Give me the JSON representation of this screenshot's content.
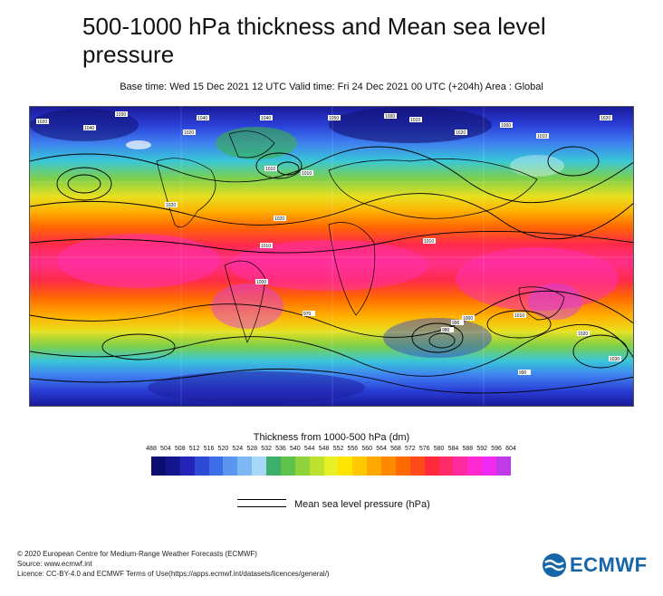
{
  "title": "500-1000 hPa thickness and Mean sea level pressure",
  "subtitle": "Base time: Wed 15 Dec 2021 12 UTC Valid time: Fri 24 Dec 2021 00 UTC (+204h) Area : Global",
  "map": {
    "isobar_labels": [
      "1020",
      "1040",
      "1030",
      "1020",
      "1040",
      "1040",
      "1050",
      "1000",
      "1010",
      "1020",
      "1000",
      "1010",
      "1020",
      "1010",
      "1010",
      "1020",
      "1020",
      "1010",
      "1010",
      "1000",
      "970",
      "980",
      "990",
      "1000",
      "1010",
      "1020",
      "1030",
      "990"
    ]
  },
  "legend": {
    "title": "Thickness from 1000-500 hPa (dm)",
    "ticks": [
      "488",
      "504",
      "508",
      "512",
      "516",
      "520",
      "524",
      "528",
      "532",
      "536",
      "540",
      "544",
      "548",
      "552",
      "556",
      "560",
      "564",
      "568",
      "572",
      "576",
      "580",
      "584",
      "588",
      "592",
      "596",
      "604"
    ],
    "colors": [
      "#0d0d70",
      "#15158f",
      "#2424b8",
      "#2f4bd6",
      "#3c6ee8",
      "#5a95f0",
      "#7db8f5",
      "#a8d8f7",
      "#3fae6a",
      "#5cc24a",
      "#8fd23a",
      "#c0e030",
      "#e8f028",
      "#ffe400",
      "#ffc800",
      "#ffa800",
      "#ff8a00",
      "#ff6a00",
      "#ff4a1a",
      "#ff2a3a",
      "#ff2a6a",
      "#ff2aa0",
      "#ff2ad0",
      "#f02af0",
      "#c03ae8"
    ],
    "mslp_label": "Mean sea level pressure (hPa)"
  },
  "footer": {
    "line1": "© 2020 European Centre for Medium-Range Weather Forecasts (ECMWF)",
    "line2": "Source: www.ecmwf.int",
    "line3": "Licence: CC-BY-4.0 and ECMWF Terms of Use(https://apps.ecmwf.int/datasets/licences/general/)"
  },
  "logo": {
    "text": "ECMWF",
    "color": "#1565a8"
  }
}
